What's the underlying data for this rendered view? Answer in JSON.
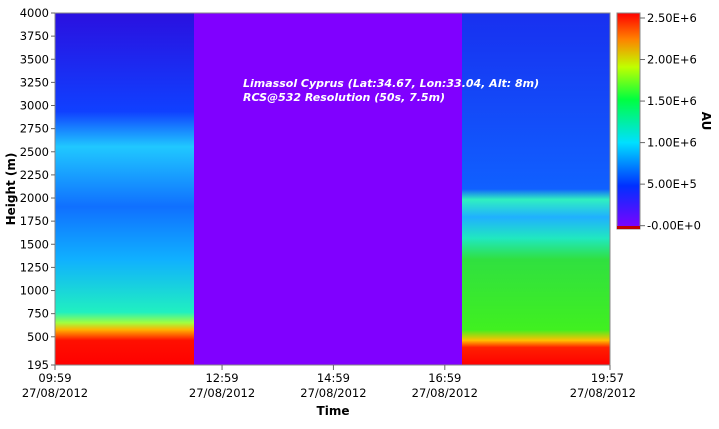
{
  "chart_data": {
    "type": "heatmap",
    "annotations": [
      "Limassol Cyprus (Lat:34.67, Lon:33.04, Alt: 8m)",
      "RCS@532 Resolution (50s, 7.5m)"
    ],
    "xlabel": "Time",
    "ylabel": "Height (m)",
    "colorbar_label": "AU",
    "xlim": [
      599,
      1197
    ],
    "xticks": [
      {
        "value": 599,
        "label": "09:59",
        "date": "27/08/2012"
      },
      {
        "value": 779,
        "label": "12:59",
        "date": "27/08/2012"
      },
      {
        "value": 899,
        "label": "14:59",
        "date": "27/08/2012"
      },
      {
        "value": 1019,
        "label": "16:59",
        "date": "27/08/2012"
      },
      {
        "value": 1197,
        "label": "19:57",
        "date": "27/08/2012"
      }
    ],
    "ylim": [
      195,
      4000
    ],
    "yticks": [
      195,
      500,
      750,
      1000,
      1250,
      1500,
      1750,
      2000,
      2250,
      2500,
      2750,
      3000,
      3250,
      3500,
      3750,
      4000
    ],
    "clim": [
      -40000,
      2560000
    ],
    "cticks": [
      {
        "value": 0,
        "label": "-0.00E+0"
      },
      {
        "value": 500000,
        "label": "5.00E+5"
      },
      {
        "value": 1000000,
        "label": "1.00E+6"
      },
      {
        "value": 1500000,
        "label": "1.50E+6"
      },
      {
        "value": 2000000,
        "label": "2.00E+6"
      },
      {
        "value": 2500000,
        "label": "2.50E+6"
      }
    ]
  }
}
